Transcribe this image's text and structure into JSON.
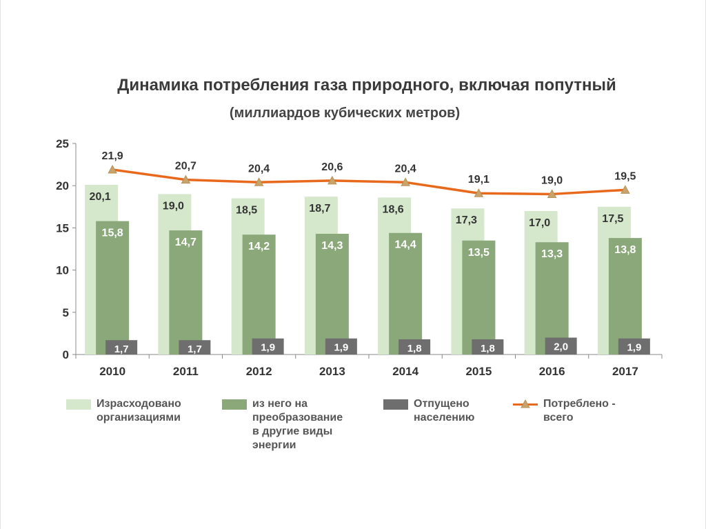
{
  "chart_data": {
    "type": "bar",
    "title": "Динамика потребления газа природного, включая попутный",
    "subtitle": "(миллиардов кубических  метров)",
    "categories": [
      "2010",
      "2011",
      "2012",
      "2013",
      "2014",
      "2015",
      "2016",
      "2017"
    ],
    "ylim": [
      0,
      25
    ],
    "yticks": [
      "0",
      "5",
      "10",
      "15",
      "20",
      "25"
    ],
    "series": [
      {
        "name": "Израсходовано\nорганизациями",
        "kind": "bar",
        "color": "#d5e8cc",
        "label_color": "#333333",
        "values": [
          20.1,
          19.0,
          18.5,
          18.7,
          18.6,
          17.3,
          17.0,
          17.5
        ],
        "labels": [
          "20,1",
          "19,0",
          "18,5",
          "18,7",
          "18,6",
          "17,3",
          "17,0",
          "17,5"
        ]
      },
      {
        "name": "из него на\nпреобразование\nв другие виды\nэнергии",
        "kind": "bar",
        "color": "#8aa87a",
        "label_color": "#ffffff",
        "values": [
          15.8,
          14.7,
          14.2,
          14.3,
          14.4,
          13.5,
          13.3,
          13.8
        ],
        "labels": [
          "15,8",
          "14,7",
          "14,2",
          "14,3",
          "14,4",
          "13,5",
          "13,3",
          "13,8"
        ]
      },
      {
        "name": "Отпущено\nнаселению",
        "kind": "bar",
        "color": "#6e6e6e",
        "label_color": "#ffffff",
        "values": [
          1.7,
          1.7,
          1.9,
          1.9,
          1.8,
          1.8,
          2.0,
          1.9
        ],
        "labels": [
          "1,7",
          "1,7",
          "1,9",
          "1,9",
          "1,8",
          "1,8",
          "2,0",
          "1,9"
        ]
      },
      {
        "name": "Потреблено -\nвсего",
        "kind": "line",
        "color": "#e8691c",
        "marker_color": "#c9a46a",
        "label_color": "#333333",
        "values": [
          21.9,
          20.7,
          20.4,
          20.6,
          20.4,
          19.1,
          19.0,
          19.5
        ],
        "labels": [
          "21,9",
          "20,7",
          "20,4",
          "20,6",
          "20,4",
          "19,1",
          "19,0",
          "19,5"
        ]
      }
    ],
    "grid": false,
    "legend": "bottom"
  }
}
